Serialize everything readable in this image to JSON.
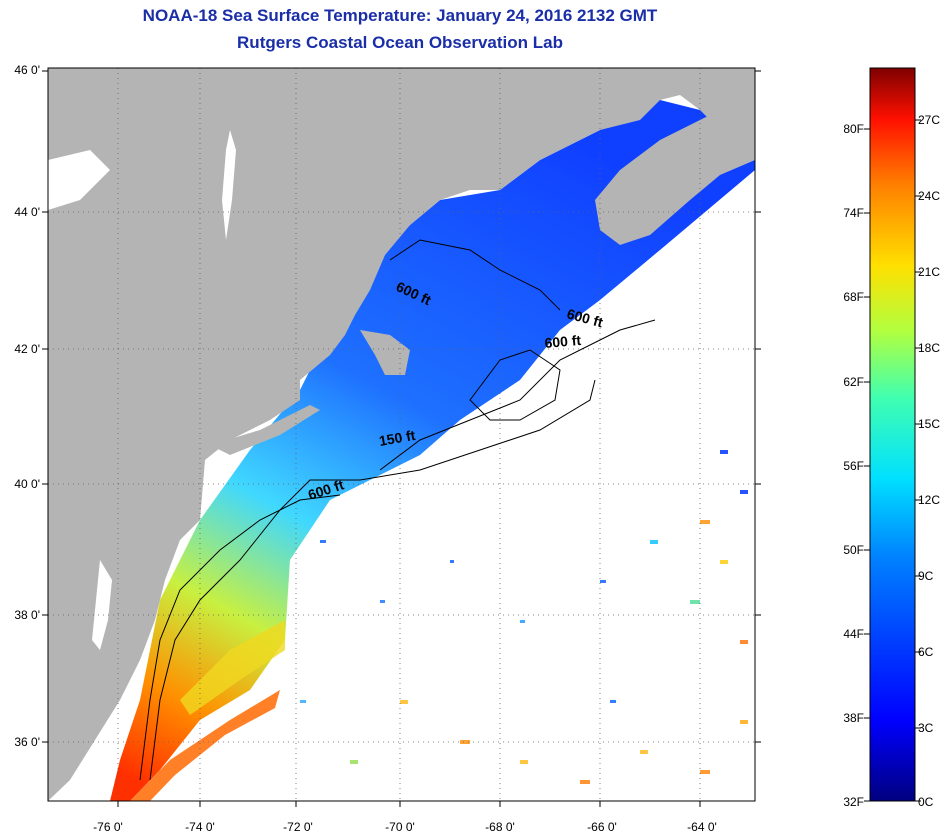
{
  "title": "NOAA-18 Sea Surface Temperature:  January 24, 2016 2132 GMT",
  "subtitle": "Rutgers Coastal Ocean Observation Lab",
  "lat_ticks": [
    "46 0'",
    "44 0'",
    "42 0'",
    "40 0'",
    "38 0'",
    "36 0'"
  ],
  "lon_ticks": [
    "-76 0'",
    "-74 0'",
    "-72 0'",
    "-70 0'",
    "-68 0'",
    "-66 0'",
    "-64 0'"
  ],
  "contour_labels": [
    "600 ft",
    "600 ft",
    "600 ft",
    "150 ft",
    "600 ft"
  ],
  "colorbar": {
    "fahrenheit": [
      "80F",
      "74F",
      "68F",
      "62F",
      "56F",
      "50F",
      "44F",
      "38F",
      "32F"
    ],
    "celsius": [
      "27C",
      "24C",
      "21C",
      "18C",
      "15C",
      "12C",
      "9C",
      "6C",
      "3C",
      "0C"
    ]
  },
  "colors": {
    "title": "#1a2ea8",
    "land": "#b4b4b4",
    "missing_data": "#ffffff",
    "scale": [
      "#00007f",
      "#0000ff",
      "#0080ff",
      "#00e0ff",
      "#40ffb0",
      "#b0ff40",
      "#ffe000",
      "#ff8000",
      "#ff1000",
      "#7f0000"
    ]
  }
}
